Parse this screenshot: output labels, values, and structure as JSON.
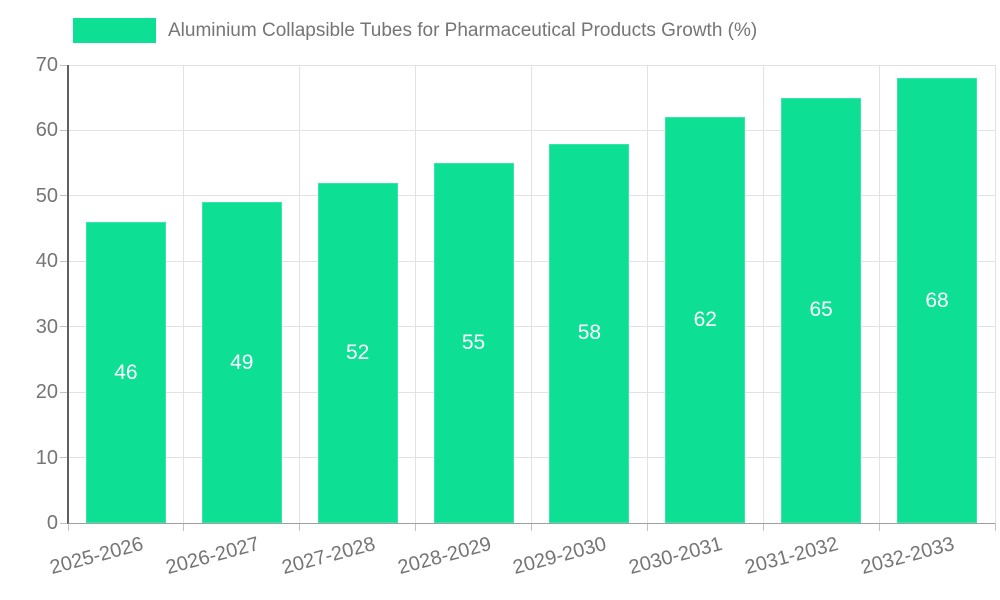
{
  "legend": {
    "label": "Aluminium Collapsible Tubes for Pharmaceutical Products Growth (%)",
    "swatch_color": "#0ddf94"
  },
  "colors": {
    "bar": "#0ddf94",
    "bar_label": "#ffffff",
    "grid": "#e2e2e2",
    "tick": "#c2c2c2",
    "y_axis_line": "#616161",
    "baseline": "#9e9e9e",
    "axis_label": "#757575",
    "background": "#ffffff"
  },
  "chart_data": {
    "type": "bar",
    "title": "Aluminium Collapsible Tubes for Pharmaceutical Products Growth (%)",
    "categories": [
      "2025-2026",
      "2026-2027",
      "2027-2028",
      "2028-2029",
      "2029-2030",
      "2030-2031",
      "2031-2032",
      "2032-2033"
    ],
    "values": [
      46,
      49,
      52,
      55,
      58,
      62,
      65,
      68
    ],
    "bar_labels": [
      "46",
      "49",
      "52",
      "55",
      "58",
      "62",
      "65",
      "68"
    ],
    "xlabel": "",
    "ylabel": "",
    "ylim": [
      0,
      70
    ],
    "yticks": [
      0,
      10,
      20,
      30,
      40,
      50,
      60,
      70
    ],
    "grid": true,
    "legend_position": "top-left",
    "x_label_rotation_deg": -15
  }
}
